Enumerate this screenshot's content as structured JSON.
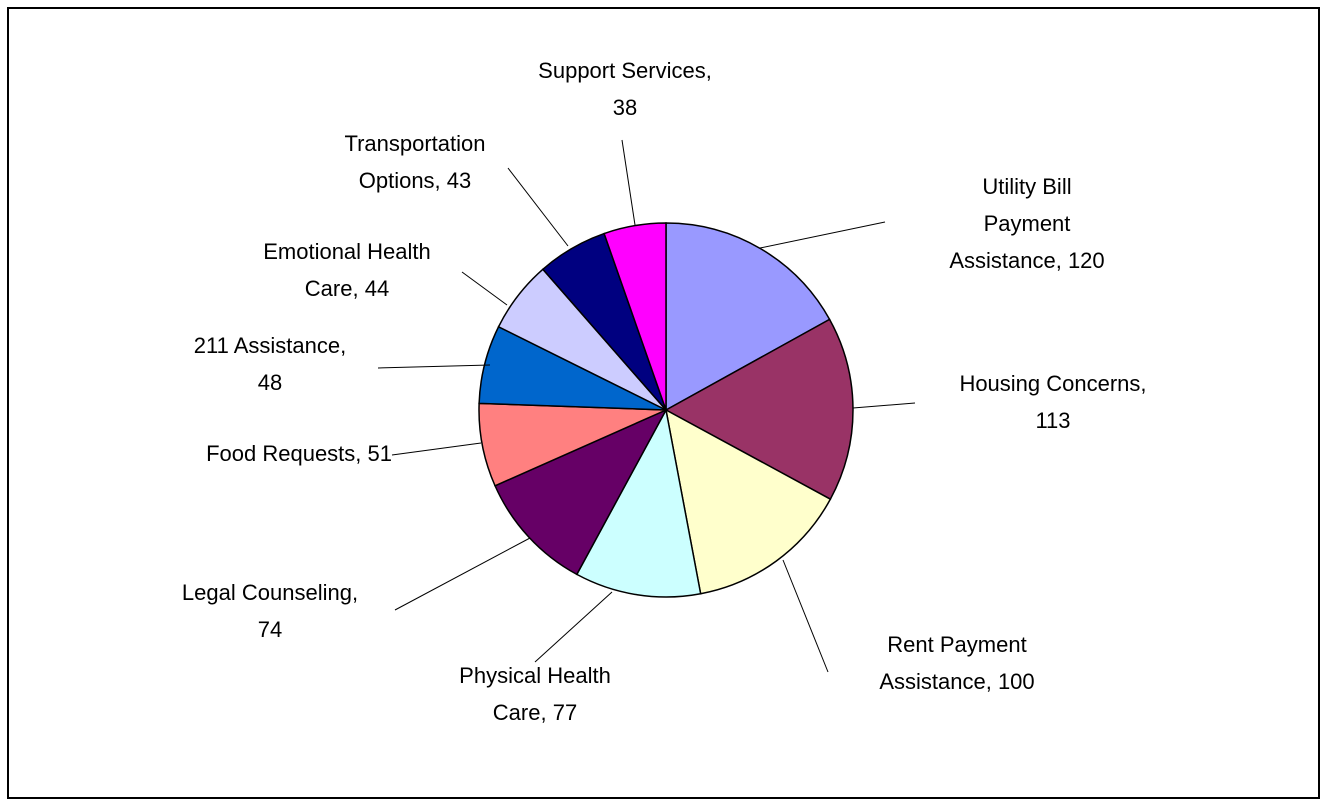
{
  "chart_data": {
    "type": "pie",
    "labels": [
      "Utility Bill Payment Assistance, 120",
      "Housing Concerns, 113",
      "Rent Payment Assistance, 100",
      "Physical Health Care, 77",
      "Legal Counseling, 74",
      "Food Requests, 51",
      "211 Assistance, 48",
      "Emotional Health Care, 44",
      "Transportation Options, 43",
      "Support Services, 38"
    ],
    "values": [
      120,
      113,
      100,
      77,
      74,
      51,
      48,
      44,
      43,
      38
    ],
    "colors": [
      "#9999ff",
      "#993366",
      "#ffffcc",
      "#ccffff",
      "#660066",
      "#ff8080",
      "#0066cc",
      "#ccccff",
      "#000080",
      "#ff00ff"
    ]
  }
}
